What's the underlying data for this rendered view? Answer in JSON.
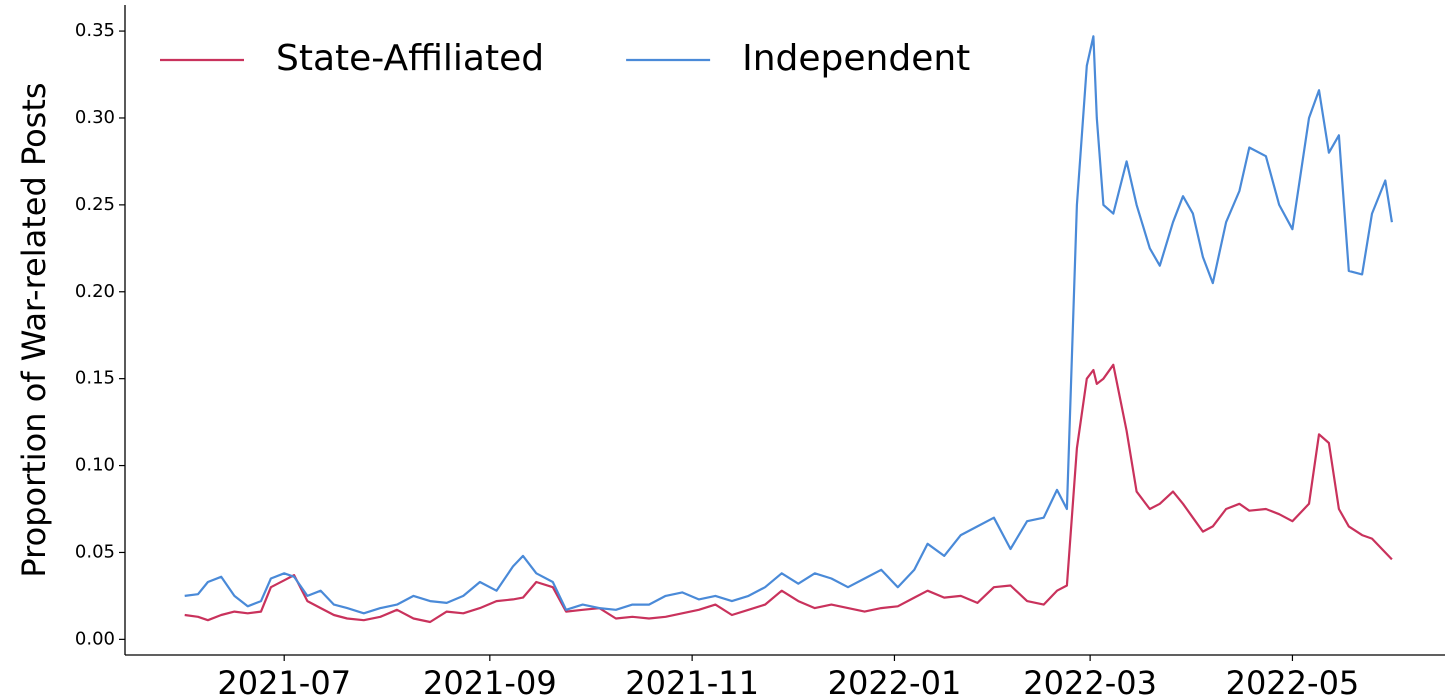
{
  "chart_data": {
    "type": "line",
    "ylabel": "Proportion of War-related Posts",
    "legend": "upper left",
    "xlim": [
      "2021-05-14",
      "2022-06-16"
    ],
    "ylim": [
      -0.009,
      0.365
    ],
    "xticks": [
      {
        "value": "2021-07-01",
        "label": "2021-07"
      },
      {
        "value": "2021-09-01",
        "label": "2021-09"
      },
      {
        "value": "2021-11-01",
        "label": "2021-11"
      },
      {
        "value": "2022-01-01",
        "label": "2022-01"
      },
      {
        "value": "2022-03-01",
        "label": "2022-03"
      },
      {
        "value": "2022-05-01",
        "label": "2022-05"
      }
    ],
    "yticks": [
      {
        "value": 0,
        "label": "0.00"
      },
      {
        "value": 0.05,
        "label": "0.05"
      },
      {
        "value": 0.1,
        "label": "0.10"
      },
      {
        "value": 0.15,
        "label": "0.15"
      },
      {
        "value": 0.2,
        "label": "0.20"
      },
      {
        "value": 0.25,
        "label": "0.25"
      },
      {
        "value": 0.3,
        "label": "0.30"
      },
      {
        "value": 0.35,
        "label": "0.35"
      }
    ],
    "x": [
      "2021-06-01",
      "2021-06-05",
      "2021-06-08",
      "2021-06-12",
      "2021-06-16",
      "2021-06-20",
      "2021-06-24",
      "2021-06-27",
      "2021-07-01",
      "2021-07-04",
      "2021-07-08",
      "2021-07-12",
      "2021-07-16",
      "2021-07-20",
      "2021-07-25",
      "2021-07-30",
      "2021-08-04",
      "2021-08-09",
      "2021-08-14",
      "2021-08-19",
      "2021-08-24",
      "2021-08-29",
      "2021-09-03",
      "2021-09-08",
      "2021-09-11",
      "2021-09-15",
      "2021-09-20",
      "2021-09-24",
      "2021-09-29",
      "2021-10-04",
      "2021-10-09",
      "2021-10-14",
      "2021-10-19",
      "2021-10-24",
      "2021-10-29",
      "2021-11-03",
      "2021-11-08",
      "2021-11-13",
      "2021-11-18",
      "2021-11-23",
      "2021-11-28",
      "2021-12-03",
      "2021-12-08",
      "2021-12-13",
      "2021-12-18",
      "2021-12-23",
      "2021-12-28",
      "2022-01-02",
      "2022-01-07",
      "2022-01-11",
      "2022-01-16",
      "2022-01-21",
      "2022-01-26",
      "2022-01-31",
      "2022-02-05",
      "2022-02-10",
      "2022-02-15",
      "2022-02-19",
      "2022-02-22",
      "2022-02-25",
      "2022-02-28",
      "2022-03-02",
      "2022-03-03",
      "2022-03-05",
      "2022-03-08",
      "2022-03-12",
      "2022-03-15",
      "2022-03-19",
      "2022-03-22",
      "2022-03-26",
      "2022-03-29",
      "2022-04-01",
      "2022-04-04",
      "2022-04-07",
      "2022-04-11",
      "2022-04-15",
      "2022-04-18",
      "2022-04-23",
      "2022-04-27",
      "2022-05-01",
      "2022-05-06",
      "2022-05-09",
      "2022-05-12",
      "2022-05-15",
      "2022-05-18",
      "2022-05-22",
      "2022-05-25",
      "2022-05-29",
      "2022-05-31"
    ],
    "series": [
      {
        "name": "State-Affiliated",
        "color": "#c9325c",
        "values": [
          0.014,
          0.013,
          0.011,
          0.014,
          0.016,
          0.015,
          0.016,
          0.03,
          0.034,
          0.037,
          0.022,
          0.018,
          0.014,
          0.012,
          0.011,
          0.013,
          0.017,
          0.012,
          0.01,
          0.016,
          0.015,
          0.018,
          0.022,
          0.023,
          0.024,
          0.033,
          0.03,
          0.016,
          0.017,
          0.018,
          0.012,
          0.013,
          0.012,
          0.013,
          0.015,
          0.017,
          0.02,
          0.014,
          0.017,
          0.02,
          0.028,
          0.022,
          0.018,
          0.02,
          0.018,
          0.016,
          0.018,
          0.019,
          0.024,
          0.028,
          0.024,
          0.025,
          0.021,
          0.03,
          0.031,
          0.022,
          0.02,
          0.028,
          0.031,
          0.11,
          0.15,
          0.155,
          0.147,
          0.15,
          0.158,
          0.12,
          0.085,
          0.075,
          0.078,
          0.085,
          0.078,
          0.07,
          0.062,
          0.065,
          0.075,
          0.078,
          0.074,
          0.075,
          0.072,
          0.068,
          0.078,
          0.118,
          0.113,
          0.075,
          0.065,
          0.06,
          0.058,
          0.05,
          0.046
        ]
      },
      {
        "name": "Independent",
        "color": "#4a8ad8",
        "values": [
          0.025,
          0.026,
          0.033,
          0.036,
          0.025,
          0.019,
          0.022,
          0.035,
          0.038,
          0.036,
          0.025,
          0.028,
          0.02,
          0.018,
          0.015,
          0.018,
          0.02,
          0.025,
          0.022,
          0.021,
          0.025,
          0.033,
          0.028,
          0.042,
          0.048,
          0.038,
          0.033,
          0.017,
          0.02,
          0.018,
          0.017,
          0.02,
          0.02,
          0.025,
          0.027,
          0.023,
          0.025,
          0.022,
          0.025,
          0.03,
          0.038,
          0.032,
          0.038,
          0.035,
          0.03,
          0.035,
          0.04,
          0.03,
          0.04,
          0.055,
          0.048,
          0.06,
          0.065,
          0.07,
          0.052,
          0.068,
          0.07,
          0.086,
          0.075,
          0.25,
          0.33,
          0.347,
          0.3,
          0.25,
          0.245,
          0.275,
          0.25,
          0.225,
          0.215,
          0.24,
          0.255,
          0.245,
          0.22,
          0.205,
          0.24,
          0.258,
          0.283,
          0.278,
          0.25,
          0.236,
          0.3,
          0.316,
          0.28,
          0.29,
          0.212,
          0.21,
          0.245,
          0.264,
          0.24
        ]
      }
    ]
  }
}
